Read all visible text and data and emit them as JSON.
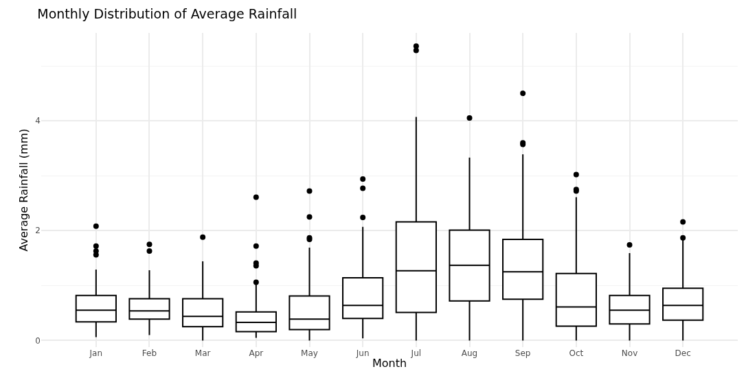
{
  "chart_data": {
    "type": "box",
    "title": "Monthly Distribution of Average Rainfall",
    "xlabel": "Month",
    "ylabel": "Average Rainfall (mm)",
    "categories": [
      "Jan",
      "Feb",
      "Mar",
      "Apr",
      "May",
      "Jun",
      "Jul",
      "Aug",
      "Sep",
      "Oct",
      "Nov",
      "Dec"
    ],
    "color": "#000000",
    "boxes": [
      {
        "low": 0.06,
        "q1": 0.34,
        "median": 0.55,
        "q3": 0.82,
        "high": 1.29,
        "outliers": [
          1.56,
          1.63,
          1.72,
          2.08
        ]
      },
      {
        "low": 0.1,
        "q1": 0.39,
        "median": 0.54,
        "q3": 0.76,
        "high": 1.28,
        "outliers": [
          1.63,
          1.75
        ]
      },
      {
        "low": 0.0,
        "q1": 0.25,
        "median": 0.44,
        "q3": 0.76,
        "high": 1.44,
        "outliers": [
          1.88
        ]
      },
      {
        "low": 0.05,
        "q1": 0.16,
        "median": 0.33,
        "q3": 0.52,
        "high": 1.03,
        "outliers": [
          1.06,
          1.36,
          1.41,
          1.72,
          2.61
        ]
      },
      {
        "low": 0.0,
        "q1": 0.2,
        "median": 0.39,
        "q3": 0.81,
        "high": 1.69,
        "outliers": [
          1.84,
          1.87,
          2.25,
          2.72
        ]
      },
      {
        "low": 0.04,
        "q1": 0.4,
        "median": 0.64,
        "q3": 1.14,
        "high": 2.07,
        "outliers": [
          2.24,
          2.77,
          2.94
        ]
      },
      {
        "low": 0.0,
        "q1": 0.51,
        "median": 1.27,
        "q3": 2.16,
        "high": 4.07,
        "outliers": [
          5.28,
          5.36
        ]
      },
      {
        "low": 0.0,
        "q1": 0.72,
        "median": 1.37,
        "q3": 2.01,
        "high": 3.33,
        "outliers": [
          4.05
        ]
      },
      {
        "low": 0.0,
        "q1": 0.75,
        "median": 1.25,
        "q3": 1.84,
        "high": 3.39,
        "outliers": [
          3.57,
          3.6,
          4.5
        ]
      },
      {
        "low": 0.0,
        "q1": 0.26,
        "median": 0.61,
        "q3": 1.22,
        "high": 2.61,
        "outliers": [
          2.72,
          2.75,
          3.02
        ]
      },
      {
        "low": 0.0,
        "q1": 0.3,
        "median": 0.55,
        "q3": 0.82,
        "high": 1.59,
        "outliers": [
          1.74
        ]
      },
      {
        "low": 0.0,
        "q1": 0.37,
        "median": 0.64,
        "q3": 0.95,
        "high": 1.83,
        "outliers": [
          1.87,
          2.16
        ]
      }
    ],
    "ylim": [
      -0.12,
      5.6
    ],
    "yticks": [
      0,
      2,
      4
    ],
    "grid": true
  }
}
